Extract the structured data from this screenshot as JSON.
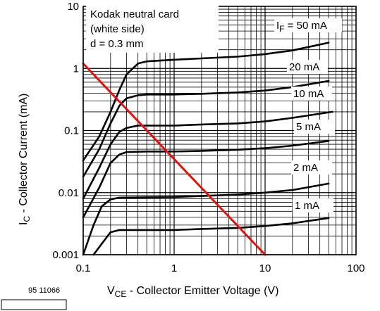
{
  "chart_data": {
    "type": "line",
    "x_scale": "log",
    "y_scale": "log",
    "xlim": [
      0.1,
      100
    ],
    "ylim": [
      0.001,
      10
    ],
    "x_ticks": [
      "0.1",
      "1",
      "10",
      "100"
    ],
    "y_ticks": [
      "0.001",
      "0.01",
      "0.1",
      "1",
      "10"
    ],
    "grid": true,
    "xlabel": {
      "main": "V",
      "sub": "CE",
      "rest": " - Collector Emitter Voltage (V)"
    },
    "ylabel": {
      "main": "I",
      "sub": "C",
      "rest": " - Collector Current (mA)"
    },
    "annotation": [
      "Kodak neutral card",
      "(white side)",
      "d = 0.3 mm"
    ],
    "figure_id": "95 11066",
    "series": [
      {
        "name": "I_F = 50 mA",
        "label_main": "I",
        "label_sub": "F",
        "label_rest": " = 50 mA",
        "points": [
          [
            0.1,
            0.033
          ],
          [
            0.15,
            0.08
          ],
          [
            0.2,
            0.2
          ],
          [
            0.25,
            0.45
          ],
          [
            0.3,
            0.8
          ],
          [
            0.4,
            1.2
          ],
          [
            0.5,
            1.3
          ],
          [
            1,
            1.38
          ],
          [
            2,
            1.45
          ],
          [
            5,
            1.55
          ],
          [
            10,
            1.7
          ],
          [
            20,
            1.95
          ],
          [
            50,
            2.6
          ]
        ]
      },
      {
        "name": "20 mA",
        "label_main": "20 mA",
        "label_sub": "",
        "label_rest": "",
        "points": [
          [
            0.1,
            0.018
          ],
          [
            0.15,
            0.05
          ],
          [
            0.2,
            0.13
          ],
          [
            0.25,
            0.25
          ],
          [
            0.3,
            0.33
          ],
          [
            0.4,
            0.37
          ],
          [
            0.5,
            0.38
          ],
          [
            1,
            0.38
          ],
          [
            2,
            0.39
          ],
          [
            5,
            0.41
          ],
          [
            10,
            0.44
          ],
          [
            20,
            0.5
          ],
          [
            50,
            0.63
          ]
        ]
      },
      {
        "name": "10 mA",
        "label_main": "10 mA",
        "label_sub": "",
        "label_rest": "",
        "points": [
          [
            0.1,
            0.008
          ],
          [
            0.15,
            0.025
          ],
          [
            0.2,
            0.06
          ],
          [
            0.25,
            0.095
          ],
          [
            0.3,
            0.11
          ],
          [
            0.4,
            0.12
          ],
          [
            0.5,
            0.12
          ],
          [
            1,
            0.12
          ],
          [
            2,
            0.125
          ],
          [
            5,
            0.13
          ],
          [
            10,
            0.14
          ],
          [
            20,
            0.16
          ],
          [
            55,
            0.2
          ]
        ]
      },
      {
        "name": "5 mA",
        "label_main": "5 mA",
        "label_sub": "",
        "label_rest": "",
        "points": [
          [
            0.1,
            0.004
          ],
          [
            0.15,
            0.012
          ],
          [
            0.2,
            0.03
          ],
          [
            0.25,
            0.041
          ],
          [
            0.3,
            0.045
          ],
          [
            0.5,
            0.046
          ],
          [
            1,
            0.046
          ],
          [
            2,
            0.047
          ],
          [
            5,
            0.049
          ],
          [
            10,
            0.052
          ],
          [
            20,
            0.057
          ],
          [
            50,
            0.068
          ]
        ]
      },
      {
        "name": "2 mA",
        "label_main": "2 mA",
        "label_sub": "",
        "label_rest": "",
        "points": [
          [
            0.1,
            0.0008
          ],
          [
            0.13,
            0.003
          ],
          [
            0.16,
            0.006
          ],
          [
            0.2,
            0.0078
          ],
          [
            0.25,
            0.0083
          ],
          [
            0.5,
            0.0084
          ],
          [
            1,
            0.0085
          ],
          [
            2,
            0.0088
          ],
          [
            5,
            0.0093
          ],
          [
            10,
            0.01
          ],
          [
            20,
            0.011
          ],
          [
            50,
            0.014
          ]
        ]
      },
      {
        "name": "1 mA",
        "label_main": "1 mA",
        "label_sub": "",
        "label_rest": "",
        "points": [
          [
            0.13,
            0.0008
          ],
          [
            0.16,
            0.0015
          ],
          [
            0.2,
            0.0023
          ],
          [
            0.25,
            0.0025
          ],
          [
            0.5,
            0.0025
          ],
          [
            1,
            0.0025
          ],
          [
            2,
            0.0026
          ],
          [
            5,
            0.0027
          ],
          [
            10,
            0.0029
          ],
          [
            20,
            0.0032
          ],
          [
            50,
            0.0039
          ]
        ]
      },
      {
        "name": "load line",
        "points": [
          [
            0.1,
            1.2
          ],
          [
            10,
            0.001
          ]
        ]
      }
    ],
    "colors": {
      "curves": "#000000",
      "load_line": "#e0140c",
      "grid": "#000000"
    }
  }
}
